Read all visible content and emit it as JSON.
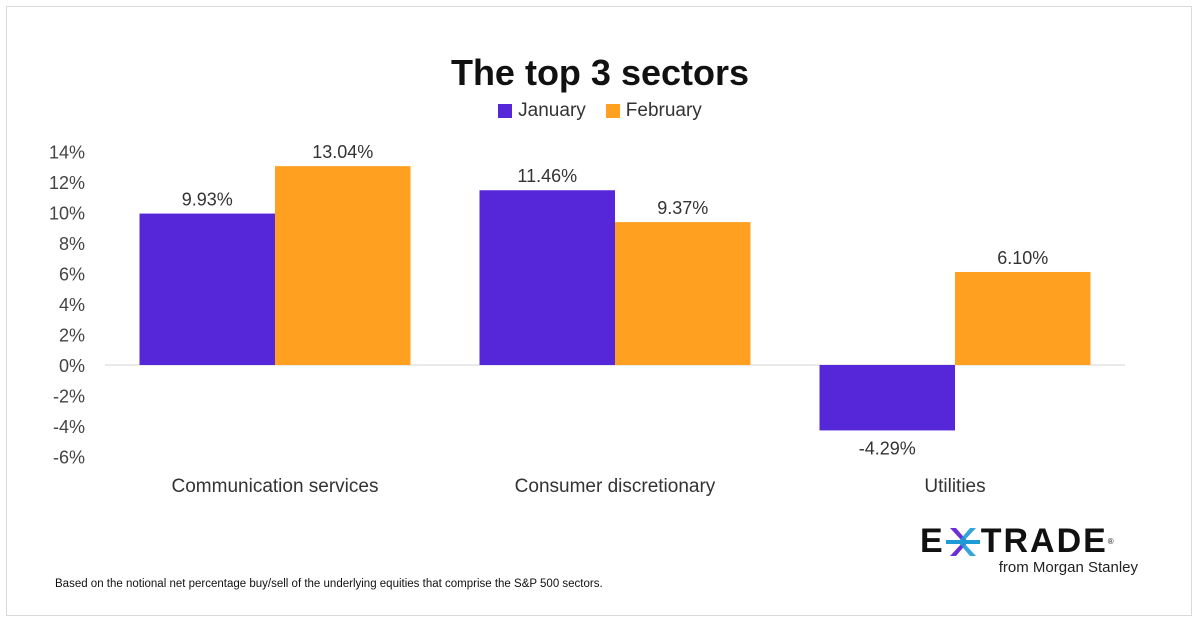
{
  "chart_data": {
    "type": "bar",
    "title": "The top 3 sectors",
    "categories": [
      "Communication services",
      "Consumer discretionary",
      "Utilities"
    ],
    "series": [
      {
        "name": "January",
        "color": "#5627d8",
        "values": [
          9.93,
          11.46,
          -4.29
        ],
        "labels": [
          "9.93%",
          "11.46%",
          "-4.29%"
        ]
      },
      {
        "name": "February",
        "color": "#ffa020",
        "values": [
          13.04,
          9.37,
          6.1
        ],
        "labels": [
          "13.04%",
          "9.37%",
          "6.10%"
        ]
      }
    ],
    "ylim": [
      -6,
      14
    ],
    "yticks": [
      14,
      12,
      10,
      8,
      6,
      4,
      2,
      0,
      -2,
      -4,
      -6
    ],
    "ytick_labels": [
      "14%",
      "12%",
      "10%",
      "8%",
      "6%",
      "4%",
      "2%",
      "0%",
      "-2%",
      "-4%",
      "-6%"
    ],
    "grid": false,
    "legend": "top-center"
  },
  "footnote": "Based on the notional net percentage buy/sell of the underlying equities that comprise the S&P 500 sectors.",
  "logo": {
    "text": "E*TRADE",
    "sub": "from Morgan Stanley"
  }
}
